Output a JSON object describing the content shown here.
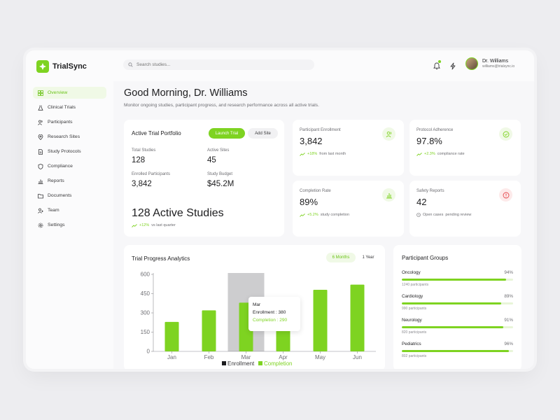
{
  "app": {
    "name": "TrialSync"
  },
  "search": {
    "placeholder": "Search studies..."
  },
  "user": {
    "name": "Dr. Williams",
    "email": "williams@trialsync.io"
  },
  "sidebar": {
    "items": [
      {
        "label": "Overview",
        "icon": "grid-icon",
        "active": true
      },
      {
        "label": "Clinical Trials",
        "icon": "flask-icon"
      },
      {
        "label": "Participants",
        "icon": "users-icon"
      },
      {
        "label": "Research Sites",
        "icon": "map-pin-icon"
      },
      {
        "label": "Study Protocols",
        "icon": "document-icon"
      },
      {
        "label": "Compliance",
        "icon": "shield-icon"
      },
      {
        "label": "Reports",
        "icon": "bar-chart-icon"
      },
      {
        "label": "Documents",
        "icon": "folder-icon"
      },
      {
        "label": "Team",
        "icon": "team-icon"
      },
      {
        "label": "Settings",
        "icon": "gear-icon"
      }
    ]
  },
  "header": {
    "greeting": "Good Morning, Dr. Williams",
    "subtitle": "Monitor ongoing studies, participant progress, and research performance across all active trials."
  },
  "portfolio": {
    "title": "Active Trial Portfolio",
    "launch_label": "Launch Trial",
    "add_site_label": "Add Site",
    "stats": [
      {
        "label": "Total Studies",
        "value": "128"
      },
      {
        "label": "Active Sites",
        "value": "45"
      },
      {
        "label": "Enrolled Participants",
        "value": "3,842"
      },
      {
        "label": "Study Budget",
        "value": "$45.2M"
      }
    ],
    "headline": "128 Active Studies",
    "trend_value": "+12%",
    "trend_text": "vs last quarter"
  },
  "metrics": [
    {
      "label": "Participant Enrollment",
      "value": "3,842",
      "trend_value": "+18%",
      "trend_text": "from last month",
      "icon": "users-icon"
    },
    {
      "label": "Protocol Adherence",
      "value": "97.8%",
      "trend_value": "+2.3%",
      "trend_text": "compliance rate",
      "icon": "check-circle-icon"
    },
    {
      "label": "Completion Rate",
      "value": "89%",
      "trend_value": "+5.2%",
      "trend_text": "study completion",
      "icon": "bar-chart-icon"
    },
    {
      "label": "Safety Reports",
      "value": "42",
      "trend_value": "Open cases",
      "trend_text": "pending review",
      "icon": "alert-icon"
    }
  ],
  "analytics": {
    "title": "Trial Progress Analytics",
    "range_options": [
      "6 Months",
      "1 Year"
    ],
    "selected_range": "6 Months",
    "tooltip": {
      "month": "Mar",
      "enrollment": "Enrollment : 380",
      "completion": "Completion : 290"
    }
  },
  "chart_data": {
    "type": "bar",
    "categories": [
      "Jan",
      "Feb",
      "Mar",
      "Apr",
      "May",
      "Jun"
    ],
    "series": [
      {
        "name": "Enrollment",
        "values": [
          230,
          320,
          380,
          420,
          480,
          520
        ]
      },
      {
        "name": "Completion",
        "values": [
          null,
          null,
          290,
          null,
          null,
          null
        ]
      }
    ],
    "yticks": [
      0,
      150,
      300,
      450,
      600
    ],
    "ylim": [
      0,
      600
    ],
    "highlight_index": 2,
    "legend_position": "bottom",
    "colors": {
      "Enrollment": "#7ed321",
      "highlight": "#c8c8ca"
    }
  },
  "groups": {
    "title": "Participant Groups",
    "items": [
      {
        "name": "Oncology",
        "pct": "94%",
        "fill": 0.94,
        "sub": "1240 participants"
      },
      {
        "name": "Cardiology",
        "pct": "89%",
        "fill": 0.89,
        "sub": "990 participants"
      },
      {
        "name": "Neurology",
        "pct": "91%",
        "fill": 0.91,
        "sub": "820 participants"
      },
      {
        "name": "Pediatrics",
        "pct": "96%",
        "fill": 0.96,
        "sub": "802 participants"
      }
    ]
  },
  "colors": {
    "accent": "#7ed321",
    "danger": "#e5484d"
  }
}
